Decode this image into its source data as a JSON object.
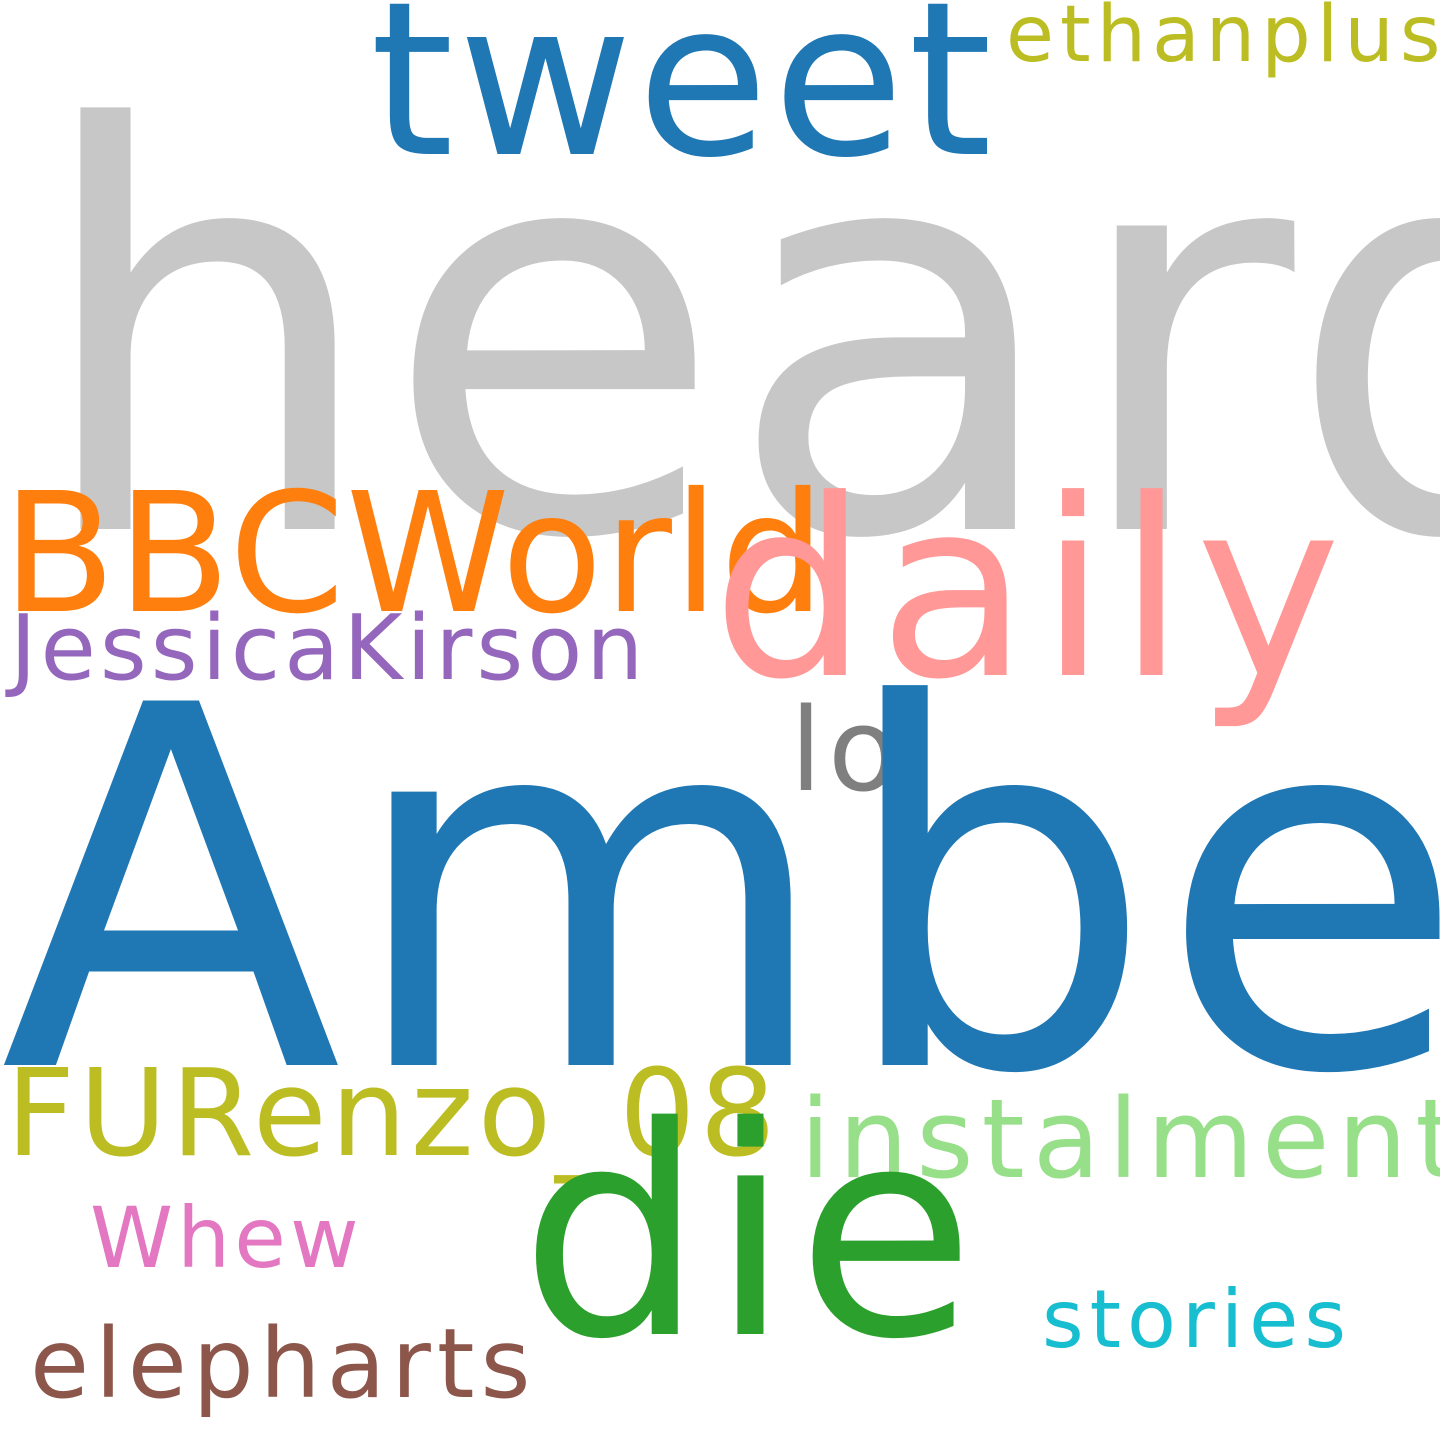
{
  "wordcloud": {
    "background": "#ffffff",
    "words": [
      {
        "key": "heard",
        "text": "heard",
        "color": "#c7c7c7"
      },
      {
        "key": "amber",
        "text": "Amber",
        "color": "#1f77b4"
      },
      {
        "key": "tweet",
        "text": "tweet",
        "color": "#1f77b4"
      },
      {
        "key": "daily",
        "text": "daily",
        "color": "#ff9896"
      },
      {
        "key": "die",
        "text": "die",
        "color": "#2ca02c"
      },
      {
        "key": "bbcworld",
        "text": "BBCWorld",
        "color": "#ff7f0e"
      },
      {
        "key": "jessica",
        "text": "JessicaKirson",
        "color": "#9467bd"
      },
      {
        "key": "lol",
        "text": "lol",
        "color": "#7f7f7f"
      },
      {
        "key": "ethan",
        "text": "ethanplus_",
        "color": "#bcbd22"
      },
      {
        "key": "furenzo",
        "text": "FURenzo_08",
        "color": "#bcbd22"
      },
      {
        "key": "instalment",
        "text": "instalment",
        "color": "#98df8a"
      },
      {
        "key": "whew",
        "text": "Whew",
        "color": "#e377c2"
      },
      {
        "key": "stories",
        "text": "stories",
        "color": "#17becf"
      },
      {
        "key": "elepharts",
        "text": "elepharts",
        "color": "#8c564b"
      }
    ]
  }
}
